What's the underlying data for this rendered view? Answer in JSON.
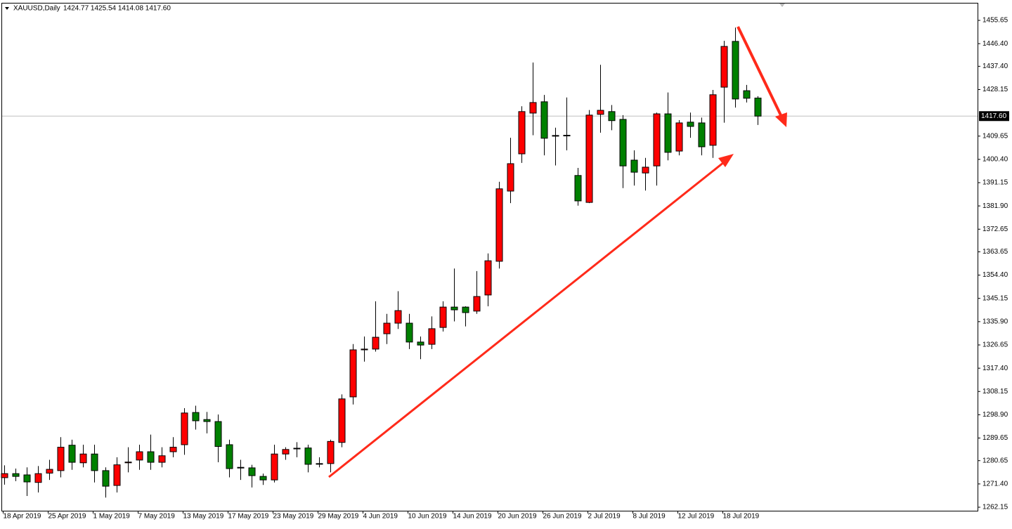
{
  "header": {
    "symbol": "XAUUSD,Daily",
    "ohlc": "1424.77 1425.54 1414.08 1417.60"
  },
  "chart_data": {
    "type": "candlestick",
    "categories": [
      "18 Apr 2019",
      null,
      null,
      null,
      "25 Apr 2019",
      null,
      null,
      null,
      "1 May 2019",
      null,
      null,
      null,
      "7 May 2019",
      null,
      null,
      null,
      "13 May 2019",
      null,
      null,
      null,
      "17 May 2019",
      null,
      null,
      null,
      "23 May 2019",
      null,
      null,
      null,
      "29 May 2019",
      null,
      null,
      null,
      "4 Jun 2019",
      null,
      null,
      null,
      "10 Jun 2019",
      null,
      null,
      null,
      "14 Jun 2019",
      null,
      null,
      null,
      "20 Jun 2019",
      null,
      null,
      null,
      "26 Jun 2019",
      null,
      null,
      null,
      "2 Jul 2019",
      null,
      null,
      null,
      "8 Jul 2019",
      null,
      null,
      null,
      "12 Jul 2019",
      null,
      null,
      null,
      "18 Jul 2019",
      null,
      null,
      null
    ],
    "open": [
      1273.9,
      1275.5,
      1275,
      1272,
      1275.7,
      1276.7,
      1286.8,
      1279.8,
      1283.3,
      1276.7,
      1270.8,
      1279.8,
      1280.9,
      1284.2,
      1280,
      1284.2,
      1287,
      1299.8,
      1297,
      1296.2,
      1287,
      1278,
      1277.8,
      1274.4,
      1273,
      1283.3,
      1285.4,
      1285.7,
      1279.5,
      1279.5,
      1287.9,
      1306,
      1324.7,
      1325,
      1331.1,
      1335.3,
      1335.3,
      1327.8,
      1326.9,
      1333.6,
      1341.7,
      1341.7,
      1340.1,
      1346.5,
      1359.9,
      1387.8,
      1402.6,
      1418.8,
      1423.3,
      1409.9,
      1410,
      1394,
      1383.3,
      1418.3,
      1419.4,
      1416.3,
      1400.1,
      1395,
      1397.8,
      1418.5,
      1403.7,
      1415.2,
      1414.9,
      1406,
      1429.1,
      1447.3,
      1427.7,
      1424.77
    ],
    "high": [
      1278.8,
      1277.5,
      1278,
      1278.5,
      1281,
      1290,
      1289,
      1287,
      1287,
      1278,
      1282,
      1286,
      1287,
      1291,
      1286,
      1290,
      1301.5,
      1302.5,
      1300,
      1299,
      1289,
      1281,
      1279,
      1275.5,
      1287,
      1286,
      1288,
      1287,
      1282,
      1289,
      1307,
      1327,
      1330,
      1344,
      1339,
      1348,
      1339,
      1330,
      1338,
      1344,
      1357,
      1342,
      1356,
      1363,
      1391.5,
      1409,
      1421.5,
      1438.9,
      1426,
      1413,
      1425,
      1397,
      1420,
      1438,
      1422,
      1418,
      1404,
      1401,
      1419,
      1427,
      1416,
      1419,
      1417,
      1428,
      1447.5,
      1452.8,
      1430,
      1425.54
    ],
    "low": [
      1271.1,
      1272.5,
      1266.6,
      1268,
      1273,
      1274,
      1277,
      1278,
      1272,
      1266,
      1268,
      1276,
      1277,
      1277,
      1278,
      1282,
      1283,
      1293,
      1291.5,
      1280,
      1274,
      1273,
      1270,
      1271,
      1272,
      1281,
      1282,
      1276,
      1278,
      1276,
      1286,
      1303,
      1320,
      1324,
      1327,
      1333,
      1325,
      1321,
      1325,
      1332,
      1336,
      1334,
      1339,
      1342,
      1357,
      1383,
      1399,
      1410,
      1402,
      1398,
      1404,
      1382,
      1383,
      1411,
      1412,
      1389,
      1390,
      1388,
      1390,
      1400,
      1402,
      1409,
      1402,
      1401,
      1415,
      1421,
      1423,
      1414.08
    ],
    "close": [
      1275.5,
      1274.4,
      1272.2,
      1275.5,
      1277.2,
      1286,
      1280,
      1283.3,
      1276.7,
      1270.5,
      1279,
      1280.1,
      1284.2,
      1280,
      1282.6,
      1286,
      1299.6,
      1296.5,
      1296.2,
      1286.3,
      1277.5,
      1278,
      1274.7,
      1273,
      1283.3,
      1285.1,
      1285.6,
      1279.2,
      1279.4,
      1288.3,
      1305.2,
      1324.7,
      1325,
      1329.7,
      1335.3,
      1340.3,
      1327.8,
      1326.6,
      1333.1,
      1341.7,
      1340.6,
      1339.5,
      1345.9,
      1360.1,
      1388.7,
      1398.7,
      1419.4,
      1423,
      1408.8,
      1409.9,
      1410,
      1383.9,
      1418,
      1419.9,
      1415.8,
      1397.8,
      1395.3,
      1397.3,
      1418.5,
      1403.2,
      1414.9,
      1413.5,
      1405.4,
      1426.1,
      1445.3,
      1424.4,
      1424.7,
      1417.6
    ],
    "up_color": "#ff0000",
    "down_color": "#008000",
    "ylim": [
      1260.75,
      1462.63
    ],
    "yticks": [
      1262.15,
      {
        "value": 1271.4,
        "label": "1271.40"
      },
      1280.65,
      1289.65,
      {
        "value": 1298.9,
        "label": "1298.90"
      },
      1308.15,
      {
        "value": 1317.4,
        "label": "1317.40"
      },
      1326.65,
      {
        "value": 1335.9,
        "label": "1335.90"
      },
      1345.15,
      {
        "value": 1354.4,
        "label": "1354.40"
      },
      1363.65,
      1372.65,
      {
        "value": 1381.9,
        "label": "1381.90"
      },
      1391.15,
      {
        "value": 1400.4,
        "label": "1400.40"
      },
      1409.65,
      1428.15,
      {
        "value": 1437.4,
        "label": "1437.40"
      },
      {
        "value": 1446.4,
        "label": "1446.40"
      },
      1455.65
    ],
    "price_line": {
      "value": 1417.6,
      "label": "1417.60"
    },
    "grid": false
  }
}
